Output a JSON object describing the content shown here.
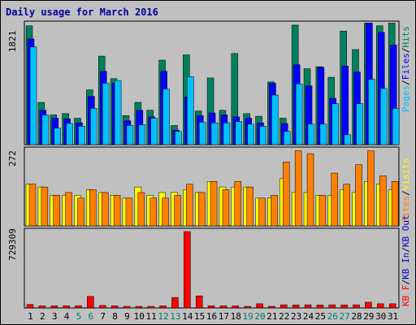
{
  "title": "Daily usage for March 2016",
  "colors": {
    "background": "#c0c0c0",
    "plot_background": "#c0c0c0",
    "hits": "#00805c",
    "files": "#0000ff",
    "pages": "#00c0ff",
    "visits": "#ffff00",
    "sites": "#ff8000",
    "kbytes_in": "#0000d0",
    "kbytes_out": "#0000d0",
    "kbytes_f": "#ff0000",
    "weekend_label": "#00805c",
    "weekday_label": "#000000"
  },
  "chart_data": [
    {
      "type": "bar",
      "title": "Daily usage for March 2016",
      "ymax_label": "1821",
      "ylim": [
        0,
        1821
      ],
      "legend": [
        "Pages",
        "/",
        "Files",
        "/",
        "Hits"
      ],
      "legend_placement": "right-vertical",
      "categories": [
        "1",
        "2",
        "3",
        "4",
        "5",
        "6",
        "7",
        "8",
        "9",
        "10",
        "11",
        "12",
        "13",
        "14",
        "15",
        "16",
        "17",
        "18",
        "19",
        "20",
        "21",
        "22",
        "23",
        "24",
        "25",
        "26",
        "27",
        "28",
        "29",
        "30",
        "31"
      ],
      "weekend_days": [
        "5",
        "6",
        "12",
        "13",
        "19",
        "20",
        "26",
        "27"
      ],
      "series": [
        {
          "name": "Hits",
          "values": [
            1800,
            640,
            450,
            470,
            400,
            830,
            1340,
            1000,
            440,
            640,
            520,
            1280,
            290,
            1360,
            510,
            1010,
            520,
            1380,
            470,
            430,
            950,
            400,
            1810,
            1150,
            1180,
            1020,
            1720,
            1440,
            1840,
            1800,
            1840
          ]
        },
        {
          "name": "Files",
          "values": [
            1600,
            520,
            400,
            390,
            330,
            730,
            1110,
            930,
            360,
            520,
            420,
            1110,
            220,
            720,
            440,
            480,
            450,
            420,
            400,
            330,
            930,
            320,
            1210,
            890,
            1170,
            700,
            1190,
            1100,
            1840,
            1700,
            1510
          ]
        },
        {
          "name": "Pages",
          "values": [
            1480,
            450,
            250,
            320,
            280,
            550,
            930,
            970,
            290,
            300,
            400,
            840,
            200,
            1030,
            340,
            330,
            330,
            350,
            310,
            280,
            750,
            200,
            920,
            310,
            310,
            620,
            150,
            620,
            990,
            850,
            550
          ]
        }
      ]
    },
    {
      "type": "bar",
      "ymax_label": "272",
      "ylim": [
        0,
        272
      ],
      "legend": [
        "Sites",
        "/",
        "Visits"
      ],
      "legend_placement": "right-vertical",
      "categories": [
        "1",
        "2",
        "3",
        "4",
        "5",
        "6",
        "7",
        "8",
        "9",
        "10",
        "11",
        "12",
        "13",
        "14",
        "15",
        "16",
        "17",
        "18",
        "19",
        "20",
        "21",
        "22",
        "23",
        "24",
        "25",
        "26",
        "27",
        "28",
        "29",
        "30",
        "31"
      ],
      "series": [
        {
          "name": "Visits",
          "values": [
            150,
            140,
            110,
            110,
            110,
            130,
            120,
            110,
            100,
            140,
            110,
            120,
            120,
            130,
            120,
            160,
            140,
            140,
            140,
            100,
            100,
            170,
            120,
            120,
            110,
            110,
            130,
            120,
            160,
            150,
            130
          ]
        },
        {
          "name": "Sites",
          "values": [
            150,
            140,
            110,
            120,
            100,
            130,
            120,
            110,
            100,
            120,
            100,
            100,
            110,
            150,
            120,
            160,
            130,
            160,
            140,
            100,
            110,
            230,
            270,
            260,
            110,
            190,
            150,
            220,
            270,
            180,
            160
          ]
        }
      ]
    },
    {
      "type": "bar",
      "ymax_label": "729309",
      "ylim": [
        0,
        729309
      ],
      "legend": [
        "KB F",
        "/",
        "KB In",
        "/",
        "KB Out"
      ],
      "legend_placement": "right-vertical",
      "categories": [
        "1",
        "2",
        "3",
        "4",
        "5",
        "6",
        "7",
        "8",
        "9",
        "10",
        "11",
        "12",
        "13",
        "14",
        "15",
        "16",
        "17",
        "18",
        "19",
        "20",
        "21",
        "22",
        "23",
        "24",
        "25",
        "26",
        "27",
        "28",
        "29",
        "30",
        "31"
      ],
      "series": [
        {
          "name": "KB F",
          "values": [
            33000,
            20000,
            20000,
            20000,
            20000,
            110000,
            24000,
            20000,
            15000,
            15000,
            15000,
            20000,
            100000,
            729309,
            115000,
            20000,
            20000,
            20000,
            15000,
            40000,
            15000,
            30000,
            28000,
            30000,
            28000,
            30000,
            28000,
            30000,
            55000,
            40000,
            40000
          ]
        }
      ]
    }
  ]
}
